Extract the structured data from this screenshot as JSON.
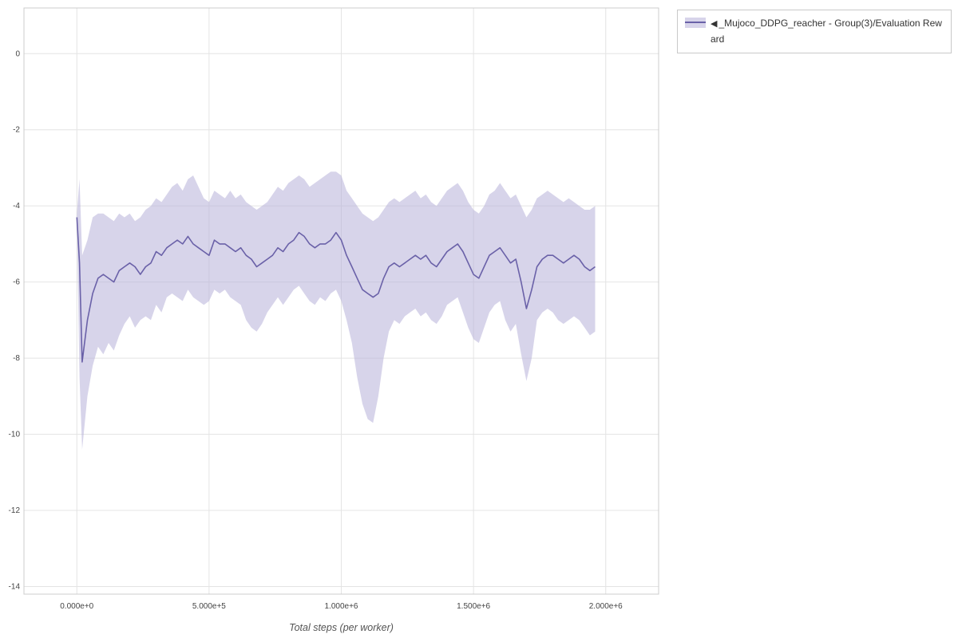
{
  "legend": {
    "collapse_icon": "◀",
    "label": "_Mujoco_DDPG_reacher - Group(3)/Evaluation Reward"
  },
  "chart_data": {
    "type": "line",
    "title": "",
    "xlabel": "Total steps (per worker)",
    "ylabel": "",
    "xlim": [
      -200000,
      2200000
    ],
    "ylim": [
      -14.2,
      1.2
    ],
    "grid": true,
    "legend_position": "top-right",
    "xticks": [
      0,
      500000,
      1000000,
      1500000,
      2000000
    ],
    "xtick_labels": [
      "0.000e+0",
      "5.000e+5",
      "1.000e+6",
      "1.500e+6",
      "2.000e+6"
    ],
    "yticks": [
      0,
      -2,
      -4,
      -6,
      -8,
      -10,
      -12,
      -14
    ],
    "ytick_labels": [
      "0",
      "-2",
      "-4",
      "-6",
      "-8",
      "-10",
      "-12",
      "-14"
    ],
    "colors": {
      "line": "#6a61a8",
      "band": "#b7b1d8",
      "band_opacity": 0.55,
      "grid": "#e4e4e4",
      "frame": "#cccccc",
      "tick_text": "#444444"
    },
    "series": [
      {
        "name": "_Mujoco_DDPG_reacher - Group(3)/Evaluation Reward",
        "x": [
          0,
          10000,
          20000,
          40000,
          60000,
          80000,
          100000,
          120000,
          140000,
          160000,
          180000,
          200000,
          220000,
          240000,
          260000,
          280000,
          300000,
          320000,
          340000,
          360000,
          380000,
          400000,
          420000,
          440000,
          460000,
          480000,
          500000,
          520000,
          540000,
          560000,
          580000,
          600000,
          620000,
          640000,
          660000,
          680000,
          700000,
          720000,
          740000,
          760000,
          780000,
          800000,
          820000,
          840000,
          860000,
          880000,
          900000,
          920000,
          940000,
          960000,
          980000,
          1000000,
          1020000,
          1040000,
          1060000,
          1080000,
          1100000,
          1120000,
          1140000,
          1160000,
          1180000,
          1200000,
          1220000,
          1240000,
          1260000,
          1280000,
          1300000,
          1320000,
          1340000,
          1360000,
          1380000,
          1400000,
          1420000,
          1440000,
          1460000,
          1480000,
          1500000,
          1520000,
          1540000,
          1560000,
          1580000,
          1600000,
          1620000,
          1640000,
          1660000,
          1680000,
          1700000,
          1720000,
          1740000,
          1760000,
          1780000,
          1800000,
          1820000,
          1840000,
          1860000,
          1880000,
          1900000,
          1920000,
          1940000,
          1960000
        ],
        "mean": [
          -4.3,
          -5.5,
          -8.1,
          -7.0,
          -6.3,
          -5.9,
          -5.8,
          -5.9,
          -6.0,
          -5.7,
          -5.6,
          -5.5,
          -5.6,
          -5.8,
          -5.6,
          -5.5,
          -5.2,
          -5.3,
          -5.1,
          -5.0,
          -4.9,
          -5.0,
          -4.8,
          -5.0,
          -5.1,
          -5.2,
          -5.3,
          -4.9,
          -5.0,
          -5.0,
          -5.1,
          -5.2,
          -5.1,
          -5.3,
          -5.4,
          -5.6,
          -5.5,
          -5.4,
          -5.3,
          -5.1,
          -5.2,
          -5.0,
          -4.9,
          -4.7,
          -4.8,
          -5.0,
          -5.1,
          -5.0,
          -5.0,
          -4.9,
          -4.7,
          -4.9,
          -5.3,
          -5.6,
          -5.9,
          -6.2,
          -6.3,
          -6.4,
          -6.3,
          -5.9,
          -5.6,
          -5.5,
          -5.6,
          -5.5,
          -5.4,
          -5.3,
          -5.4,
          -5.3,
          -5.5,
          -5.6,
          -5.4,
          -5.2,
          -5.1,
          -5.0,
          -5.2,
          -5.5,
          -5.8,
          -5.9,
          -5.6,
          -5.3,
          -5.2,
          -5.1,
          -5.3,
          -5.5,
          -5.4,
          -6.0,
          -6.7,
          -6.2,
          -5.6,
          -5.4,
          -5.3,
          -5.3,
          -5.4,
          -5.5,
          -5.4,
          -5.3,
          -5.4,
          -5.6,
          -5.7,
          -5.6
        ],
        "upper": [
          -4.2,
          -3.3,
          -5.3,
          -4.9,
          -4.3,
          -4.2,
          -4.2,
          -4.3,
          -4.4,
          -4.2,
          -4.3,
          -4.2,
          -4.4,
          -4.3,
          -4.1,
          -4.0,
          -3.8,
          -3.9,
          -3.7,
          -3.5,
          -3.4,
          -3.6,
          -3.3,
          -3.2,
          -3.5,
          -3.8,
          -3.9,
          -3.6,
          -3.7,
          -3.8,
          -3.6,
          -3.8,
          -3.7,
          -3.9,
          -4.0,
          -4.1,
          -4.0,
          -3.9,
          -3.7,
          -3.5,
          -3.6,
          -3.4,
          -3.3,
          -3.2,
          -3.3,
          -3.5,
          -3.4,
          -3.3,
          -3.2,
          -3.1,
          -3.1,
          -3.2,
          -3.6,
          -3.8,
          -4.0,
          -4.2,
          -4.3,
          -4.4,
          -4.3,
          -4.1,
          -3.9,
          -3.8,
          -3.9,
          -3.8,
          -3.7,
          -3.6,
          -3.8,
          -3.7,
          -3.9,
          -4.0,
          -3.8,
          -3.6,
          -3.5,
          -3.4,
          -3.6,
          -3.9,
          -4.1,
          -4.2,
          -4.0,
          -3.7,
          -3.6,
          -3.4,
          -3.6,
          -3.8,
          -3.7,
          -4.0,
          -4.3,
          -4.1,
          -3.8,
          -3.7,
          -3.6,
          -3.7,
          -3.8,
          -3.9,
          -3.8,
          -3.9,
          -4.0,
          -4.1,
          -4.1,
          -4.0
        ],
        "lower": [
          -4.4,
          -8.5,
          -10.4,
          -9.0,
          -8.2,
          -7.7,
          -7.9,
          -7.6,
          -7.8,
          -7.4,
          -7.1,
          -6.9,
          -7.2,
          -7.0,
          -6.9,
          -7.0,
          -6.6,
          -6.8,
          -6.4,
          -6.3,
          -6.4,
          -6.5,
          -6.2,
          -6.4,
          -6.5,
          -6.6,
          -6.5,
          -6.2,
          -6.3,
          -6.2,
          -6.4,
          -6.5,
          -6.6,
          -7.0,
          -7.2,
          -7.3,
          -7.1,
          -6.8,
          -6.6,
          -6.4,
          -6.6,
          -6.4,
          -6.2,
          -6.1,
          -6.3,
          -6.5,
          -6.6,
          -6.4,
          -6.5,
          -6.3,
          -6.2,
          -6.5,
          -7.0,
          -7.6,
          -8.5,
          -9.2,
          -9.6,
          -9.7,
          -9.0,
          -8.0,
          -7.3,
          -7.0,
          -7.1,
          -6.9,
          -6.8,
          -6.7,
          -6.9,
          -6.8,
          -7.0,
          -7.1,
          -6.9,
          -6.6,
          -6.5,
          -6.4,
          -6.8,
          -7.2,
          -7.5,
          -7.6,
          -7.2,
          -6.8,
          -6.6,
          -6.5,
          -7.0,
          -7.3,
          -7.1,
          -7.9,
          -8.6,
          -8.0,
          -7.0,
          -6.8,
          -6.7,
          -6.8,
          -7.0,
          -7.1,
          -7.0,
          -6.9,
          -7.0,
          -7.2,
          -7.4,
          -7.3
        ]
      }
    ]
  }
}
